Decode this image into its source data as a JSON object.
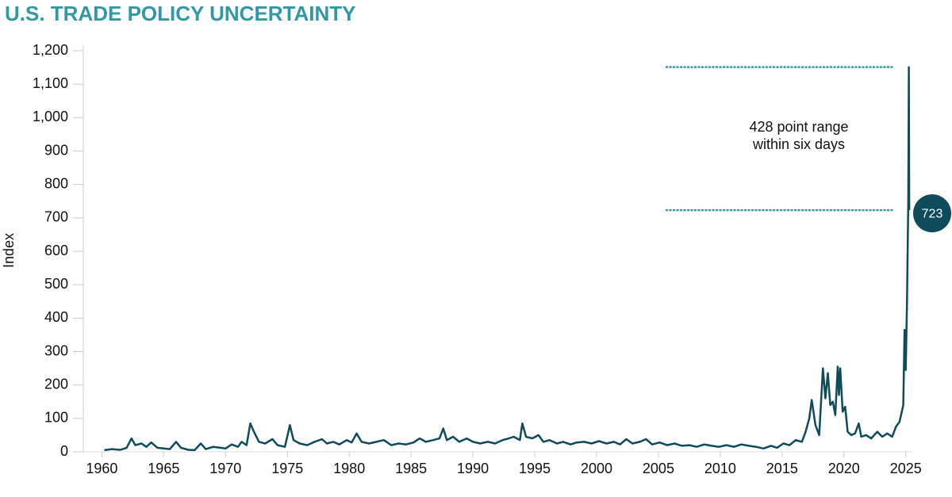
{
  "chart_data": {
    "type": "line",
    "title": "U.S. TRADE POLICY UNCERTAINTY",
    "y_label": "Index",
    "color": "#0e4b5b",
    "xlim": [
      1958.5,
      2026.3
    ],
    "xticks": [
      1960,
      1965,
      1970,
      1975,
      1980,
      1985,
      1990,
      1995,
      2000,
      2005,
      2010,
      2015,
      2020,
      2025
    ],
    "ylim": [
      0,
      1200
    ],
    "yticks": [
      0,
      100,
      200,
      300,
      400,
      500,
      600,
      700,
      800,
      900,
      {
        "value": 1000,
        "label": "1,000"
      },
      {
        "value": 1100,
        "label": "1,100"
      },
      {
        "value": 1200,
        "label": "1,200"
      }
    ],
    "annotations": {
      "text": [
        "428 point range",
        "within six days"
      ],
      "high": 1151,
      "low": 723,
      "color": "#2e9aa6"
    },
    "x": [
      1960.2,
      1960.8,
      1961.5,
      1962.0,
      1962.4,
      1962.7,
      1963.2,
      1963.6,
      1964.0,
      1964.5,
      1965.0,
      1965.5,
      1966.0,
      1966.4,
      1967.0,
      1967.5,
      1968.0,
      1968.4,
      1969.0,
      1969.6,
      1970.0,
      1970.5,
      1971.0,
      1971.3,
      1971.7,
      1972.0,
      1972.3,
      1972.7,
      1973.2,
      1973.8,
      1974.2,
      1974.8,
      1975.2,
      1975.5,
      1976.0,
      1976.6,
      1977.2,
      1977.8,
      1978.2,
      1978.7,
      1979.2,
      1979.8,
      1980.2,
      1980.6,
      1981.0,
      1981.6,
      1982.2,
      1982.8,
      1983.4,
      1984.0,
      1984.6,
      1985.2,
      1985.7,
      1986.2,
      1986.8,
      1987.3,
      1987.6,
      1987.9,
      1988.4,
      1988.9,
      1989.5,
      1990.0,
      1990.6,
      1991.2,
      1991.8,
      1992.4,
      1992.9,
      1993.3,
      1993.8,
      1994.0,
      1994.3,
      1994.8,
      1995.3,
      1995.7,
      1996.2,
      1996.8,
      1997.3,
      1997.9,
      1998.4,
      1999.0,
      1999.6,
      2000.2,
      2000.8,
      2001.4,
      2001.9,
      2002.4,
      2002.9,
      2003.5,
      2004.0,
      2004.5,
      2005.1,
      2005.7,
      2006.3,
      2006.9,
      2007.5,
      2008.1,
      2008.7,
      2009.3,
      2009.9,
      2010.5,
      2011.1,
      2011.7,
      2012.3,
      2012.9,
      2013.5,
      2014.1,
      2014.6,
      2015.1,
      2015.6,
      2016.1,
      2016.6,
      2016.9,
      2017.2,
      2017.4,
      2017.7,
      2018.0,
      2018.3,
      2018.5,
      2018.7,
      2018.9,
      2019.1,
      2019.3,
      2019.5,
      2019.6,
      2019.7,
      2019.9,
      2020.1,
      2020.3,
      2020.6,
      2020.9,
      2021.2,
      2021.4,
      2021.8,
      2022.2,
      2022.7,
      2023.1,
      2023.5,
      2023.9,
      2024.2,
      2024.5,
      2024.8,
      2024.9,
      2025.0,
      2025.1,
      2025.2,
      2025.25,
      2025.28
    ],
    "values": [
      5,
      8,
      6,
      12,
      40,
      20,
      25,
      15,
      28,
      12,
      10,
      8,
      30,
      12,
      6,
      5,
      25,
      8,
      15,
      12,
      10,
      22,
      15,
      30,
      20,
      85,
      60,
      30,
      25,
      38,
      20,
      15,
      80,
      35,
      25,
      20,
      30,
      38,
      25,
      30,
      22,
      35,
      28,
      55,
      30,
      25,
      30,
      35,
      20,
      25,
      22,
      28,
      40,
      30,
      35,
      40,
      70,
      35,
      45,
      30,
      40,
      30,
      25,
      30,
      25,
      35,
      40,
      45,
      35,
      85,
      45,
      40,
      50,
      30,
      35,
      25,
      30,
      22,
      28,
      30,
      25,
      32,
      25,
      30,
      22,
      38,
      25,
      30,
      38,
      22,
      28,
      20,
      25,
      18,
      20,
      15,
      22,
      18,
      15,
      20,
      15,
      22,
      18,
      15,
      10,
      18,
      12,
      25,
      20,
      35,
      30,
      60,
      100,
      155,
      80,
      50,
      250,
      160,
      235,
      140,
      150,
      110,
      255,
      170,
      250,
      120,
      135,
      60,
      50,
      55,
      85,
      45,
      50,
      40,
      60,
      45,
      55,
      45,
      75,
      90,
      140,
      365,
      245,
      450,
      750,
      1151,
      723
    ]
  }
}
